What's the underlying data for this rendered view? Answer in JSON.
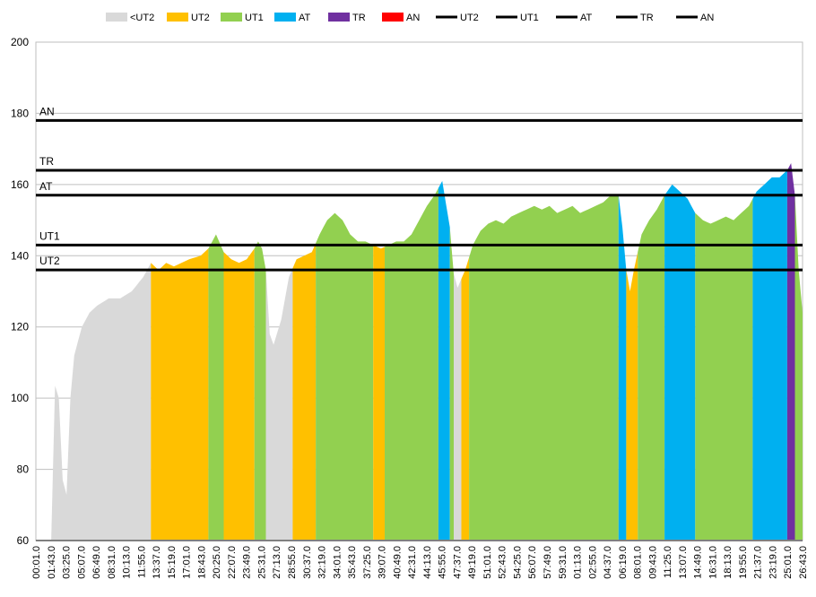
{
  "chart_data": {
    "type": "area",
    "ylim": [
      60,
      200
    ],
    "yticks": [
      60,
      80,
      100,
      120,
      140,
      160,
      180,
      200
    ],
    "grid": true,
    "legend_position": "top",
    "xtick_labels": [
      "00:01.0",
      "01:43.0",
      "03:25.0",
      "05:07.0",
      "06:49.0",
      "08:31.0",
      "10:13.0",
      "11:55.0",
      "13:37.0",
      "15:19.0",
      "17:01.0",
      "18:43.0",
      "20:25.0",
      "22:07.0",
      "23:49.0",
      "25:31.0",
      "27:13.0",
      "28:55.0",
      "30:37.0",
      "32:19.0",
      "34:01.0",
      "35:43.0",
      "37:25.0",
      "39:07.0",
      "40:49.0",
      "42:31.0",
      "44:13.0",
      "45:55.0",
      "47:37.0",
      "49:19.0",
      "51:01.0",
      "52:43.0",
      "54:25.0",
      "56:07.0",
      "57:49.0",
      "59:31.0",
      "01:13.0",
      "02:55.0",
      "04:37.0",
      "06:19.0",
      "08:01.0",
      "09:43.0",
      "11:25.0",
      "13:07.0",
      "14:49.0",
      "16:31.0",
      "18:13.0",
      "19:55.0",
      "21:37.0",
      "23:19.0",
      "25:01.0",
      "26:43.0"
    ],
    "legend": [
      {
        "label": "<UT2",
        "kind": "fill",
        "color": "#D9D9D9"
      },
      {
        "label": "UT2",
        "kind": "fill",
        "color": "#FFC000"
      },
      {
        "label": "UT1",
        "kind": "fill",
        "color": "#92D050"
      },
      {
        "label": "AT",
        "kind": "fill",
        "color": "#00B0F0"
      },
      {
        "label": "TR",
        "kind": "fill",
        "color": "#7030A0"
      },
      {
        "label": "AN",
        "kind": "fill",
        "color": "#FF0000"
      },
      {
        "label": "UT2",
        "kind": "line",
        "color": "#000000"
      },
      {
        "label": "UT1",
        "kind": "line",
        "color": "#000000"
      },
      {
        "label": "AT",
        "kind": "line",
        "color": "#000000"
      },
      {
        "label": "TR",
        "kind": "line",
        "color": "#000000"
      },
      {
        "label": "AN",
        "kind": "line",
        "color": "#000000"
      }
    ],
    "thresholds": [
      {
        "name": "AN",
        "value": 178
      },
      {
        "name": "TR",
        "value": 164
      },
      {
        "name": "AT",
        "value": 157
      },
      {
        "name": "UT1",
        "value": 143
      },
      {
        "name": "UT2",
        "value": 136
      }
    ],
    "zone_colors": {
      "<UT2": "#D9D9D9",
      "UT2": "#FFC000",
      "UT1": "#92D050",
      "AT": "#00B0F0",
      "TR": "#7030A0",
      "AN": "#FF0000"
    },
    "heart_rate_profile": [
      [
        0,
        60
      ],
      [
        0.02,
        60
      ],
      [
        0.022,
        96
      ],
      [
        0.026,
        106
      ],
      [
        0.03,
        100
      ],
      [
        0.034,
        82
      ],
      [
        0.038,
        62
      ],
      [
        0.045,
        100
      ],
      [
        0.05,
        112
      ],
      [
        0.06,
        120
      ],
      [
        0.07,
        124
      ],
      [
        0.08,
        126
      ],
      [
        0.095,
        128
      ],
      [
        0.11,
        128
      ],
      [
        0.125,
        130
      ],
      [
        0.14,
        134
      ],
      [
        0.15,
        138
      ],
      [
        0.16,
        136
      ],
      [
        0.17,
        138
      ],
      [
        0.18,
        137
      ],
      [
        0.19,
        138
      ],
      [
        0.2,
        139
      ],
      [
        0.215,
        140
      ],
      [
        0.225,
        142
      ],
      [
        0.235,
        146
      ],
      [
        0.245,
        141
      ],
      [
        0.255,
        139
      ],
      [
        0.265,
        138
      ],
      [
        0.275,
        139
      ],
      [
        0.285,
        142
      ],
      [
        0.29,
        144
      ],
      [
        0.295,
        142
      ],
      [
        0.3,
        136
      ],
      [
        0.305,
        118
      ],
      [
        0.31,
        115
      ],
      [
        0.32,
        122
      ],
      [
        0.33,
        134
      ],
      [
        0.34,
        139
      ],
      [
        0.35,
        140
      ],
      [
        0.36,
        141
      ],
      [
        0.37,
        146
      ],
      [
        0.38,
        150
      ],
      [
        0.39,
        152
      ],
      [
        0.4,
        150
      ],
      [
        0.41,
        146
      ],
      [
        0.42,
        144
      ],
      [
        0.43,
        144
      ],
      [
        0.44,
        143
      ],
      [
        0.45,
        142
      ],
      [
        0.46,
        143
      ],
      [
        0.47,
        144
      ],
      [
        0.48,
        144
      ],
      [
        0.49,
        146
      ],
      [
        0.5,
        150
      ],
      [
        0.51,
        154
      ],
      [
        0.52,
        157
      ],
      [
        0.53,
        161
      ],
      [
        0.54,
        148
      ],
      [
        0.545,
        135
      ],
      [
        0.55,
        131
      ],
      [
        0.56,
        136
      ],
      [
        0.57,
        143
      ],
      [
        0.58,
        147
      ],
      [
        0.59,
        149
      ],
      [
        0.6,
        150
      ],
      [
        0.61,
        149
      ],
      [
        0.62,
        151
      ],
      [
        0.63,
        152
      ],
      [
        0.64,
        153
      ],
      [
        0.65,
        154
      ],
      [
        0.66,
        153
      ],
      [
        0.67,
        154
      ],
      [
        0.68,
        152
      ],
      [
        0.69,
        153
      ],
      [
        0.7,
        154
      ],
      [
        0.71,
        152
      ],
      [
        0.72,
        153
      ],
      [
        0.73,
        154
      ],
      [
        0.74,
        155
      ],
      [
        0.75,
        157
      ],
      [
        0.76,
        157
      ],
      [
        0.765,
        148
      ],
      [
        0.77,
        136
      ],
      [
        0.775,
        130
      ],
      [
        0.78,
        136
      ],
      [
        0.79,
        146
      ],
      [
        0.8,
        150
      ],
      [
        0.81,
        153
      ],
      [
        0.82,
        157
      ],
      [
        0.83,
        160
      ],
      [
        0.84,
        158
      ],
      [
        0.85,
        156
      ],
      [
        0.86,
        152
      ],
      [
        0.87,
        150
      ],
      [
        0.88,
        149
      ],
      [
        0.89,
        150
      ],
      [
        0.9,
        151
      ],
      [
        0.91,
        150
      ],
      [
        0.92,
        152
      ],
      [
        0.93,
        154
      ],
      [
        0.94,
        158
      ],
      [
        0.95,
        160
      ],
      [
        0.96,
        162
      ],
      [
        0.97,
        162
      ],
      [
        0.98,
        164
      ],
      [
        0.985,
        166
      ],
      [
        0.99,
        157
      ],
      [
        0.995,
        136
      ],
      [
        1.0,
        124
      ]
    ],
    "zone_segments": [
      {
        "zone": "<UT2",
        "from": 0.0,
        "to": 0.15
      },
      {
        "zone": "UT2",
        "from": 0.15,
        "to": 0.225
      },
      {
        "zone": "UT1",
        "from": 0.225,
        "to": 0.245
      },
      {
        "zone": "UT2",
        "from": 0.245,
        "to": 0.285
      },
      {
        "zone": "UT1",
        "from": 0.285,
        "to": 0.3
      },
      {
        "zone": "<UT2",
        "from": 0.3,
        "to": 0.335
      },
      {
        "zone": "UT2",
        "from": 0.335,
        "to": 0.365
      },
      {
        "zone": "UT1",
        "from": 0.365,
        "to": 0.44
      },
      {
        "zone": "UT2",
        "from": 0.44,
        "to": 0.455
      },
      {
        "zone": "UT1",
        "from": 0.455,
        "to": 0.525
      },
      {
        "zone": "AT",
        "from": 0.525,
        "to": 0.54
      },
      {
        "zone": "UT1",
        "from": 0.54,
        "to": 0.545
      },
      {
        "zone": "<UT2",
        "from": 0.545,
        "to": 0.555
      },
      {
        "zone": "UT2",
        "from": 0.555,
        "to": 0.565
      },
      {
        "zone": "UT1",
        "from": 0.565,
        "to": 0.76
      },
      {
        "zone": "AT",
        "from": 0.76,
        "to": 0.77
      },
      {
        "zone": "UT2",
        "from": 0.77,
        "to": 0.785
      },
      {
        "zone": "UT1",
        "from": 0.785,
        "to": 0.82
      },
      {
        "zone": "AT",
        "from": 0.82,
        "to": 0.86
      },
      {
        "zone": "UT1",
        "from": 0.86,
        "to": 0.935
      },
      {
        "zone": "AT",
        "from": 0.935,
        "to": 0.98
      },
      {
        "zone": "TR",
        "from": 0.98,
        "to": 0.99
      },
      {
        "zone": "UT1",
        "from": 0.99,
        "to": 1.0
      }
    ]
  }
}
